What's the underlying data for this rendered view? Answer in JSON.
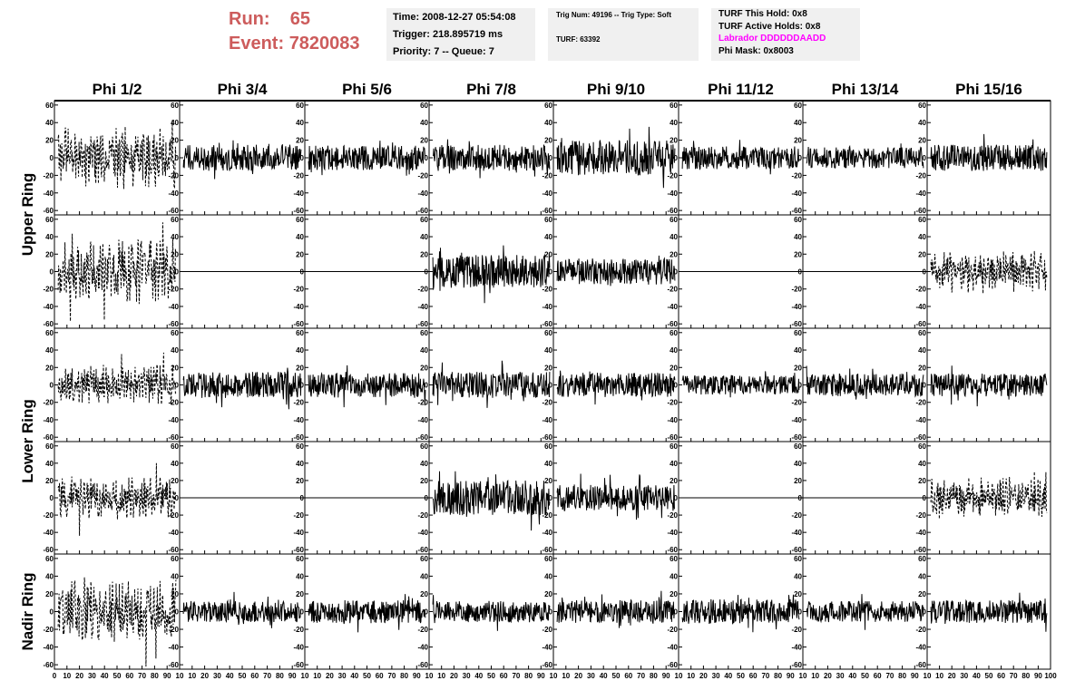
{
  "header": {
    "run_label": "Run:",
    "run_value": "65",
    "event_label": "Event:",
    "event_value": "7820083",
    "time_line": "Time: 2008-12-27 05:54:08",
    "trigger_line": "Trigger: 218.895719 ms",
    "priority_line": "Priority: 7 -- Queue: 7",
    "trig_num_line": "Trig Num: 49196 -- Trig Type: Soft",
    "turf_line": "TURF: 63392",
    "turf_hold_line": "TURF This Hold: 0x8",
    "turf_active_line": "TURF Active Holds: 0x8",
    "labrador_line": "Labrador DDDDDDAADD",
    "phi_mask_line": "Phi Mask: 0x8003"
  },
  "colors": {
    "run_text": "#cd5c5c",
    "labrador_text": "#ff00ff",
    "info_box_bg": "#f0f0f0",
    "trace": "#000000"
  },
  "chart_data": {
    "type": "line",
    "layout": "8 columns x 5 rows of waveform panels",
    "columns": [
      "Phi 1/2",
      "Phi 3/4",
      "Phi 5/6",
      "Phi 7/8",
      "Phi 9/10",
      "Phi 11/12",
      "Phi 13/14",
      "Phi 15/16"
    ],
    "ring_labels": [
      {
        "label": "Upper Ring",
        "rows": [
          0,
          1
        ]
      },
      {
        "label": "Lower Ring",
        "rows": [
          2,
          3
        ]
      },
      {
        "label": "Nadir Ring",
        "rows": [
          4
        ]
      }
    ],
    "xlim": [
      0,
      100
    ],
    "ylim": [
      -65,
      65
    ],
    "y_ticks": [
      -60,
      -40,
      -20,
      0,
      20,
      40,
      60
    ],
    "x_tick_labels_first": [
      "0",
      "10",
      "20",
      "30",
      "40",
      "50",
      "60",
      "70",
      "80",
      "90",
      "10"
    ],
    "x_tick_labels_middle": [
      "10",
      "20",
      "30",
      "40",
      "50",
      "60",
      "70",
      "80",
      "90",
      "10"
    ],
    "x_tick_labels_last": [
      "10",
      "20",
      "30",
      "40",
      "50",
      "60",
      "70",
      "80",
      "90",
      "100"
    ],
    "panels": [
      [
        {
          "style": "dashed",
          "amp": 26,
          "seed": 11
        },
        {
          "style": "solid",
          "amp": 15,
          "seed": 12
        },
        {
          "style": "solid",
          "amp": 14,
          "seed": 13
        },
        {
          "style": "solid",
          "amp": 15,
          "seed": 14
        },
        {
          "style": "solid",
          "amp": 20,
          "seed": 15
        },
        {
          "style": "solid",
          "amp": 13,
          "seed": 16
        },
        {
          "style": "solid",
          "amp": 12,
          "seed": 17
        },
        {
          "style": "solid",
          "amp": 15,
          "seed": 18
        }
      ],
      [
        {
          "style": "dashed",
          "amp": 27,
          "seed": 21
        },
        {
          "style": "flat",
          "amp": 0,
          "seed": 22
        },
        {
          "style": "flat",
          "amp": 0,
          "seed": 23
        },
        {
          "style": "solid",
          "amp": 19,
          "seed": 24
        },
        {
          "style": "solid",
          "amp": 15,
          "seed": 25
        },
        {
          "style": "flat",
          "amp": 0,
          "seed": 26
        },
        {
          "style": "flat",
          "amp": 0,
          "seed": 27
        },
        {
          "style": "dashed",
          "amp": 18,
          "seed": 28
        }
      ],
      [
        {
          "style": "dashed",
          "amp": 17,
          "seed": 31
        },
        {
          "style": "solid",
          "amp": 15,
          "seed": 32
        },
        {
          "style": "solid",
          "amp": 14,
          "seed": 33
        },
        {
          "style": "solid",
          "amp": 15,
          "seed": 34
        },
        {
          "style": "solid",
          "amp": 14,
          "seed": 35
        },
        {
          "style": "solid",
          "amp": 11,
          "seed": 36
        },
        {
          "style": "solid",
          "amp": 13,
          "seed": 37
        },
        {
          "style": "solid",
          "amp": 13,
          "seed": 38
        }
      ],
      [
        {
          "style": "dashed",
          "amp": 18,
          "seed": 41
        },
        {
          "style": "flat",
          "amp": 0,
          "seed": 42
        },
        {
          "style": "flat",
          "amp": 0,
          "seed": 43
        },
        {
          "style": "solid",
          "amp": 20,
          "seed": 44
        },
        {
          "style": "solid",
          "amp": 15,
          "seed": 45
        },
        {
          "style": "flat",
          "amp": 0,
          "seed": 46
        },
        {
          "style": "flat",
          "amp": 0,
          "seed": 47
        },
        {
          "style": "dashed",
          "amp": 18,
          "seed": 48
        }
      ],
      [
        {
          "style": "dashed",
          "amp": 26,
          "seed": 51
        },
        {
          "style": "solid",
          "amp": 12,
          "seed": 52
        },
        {
          "style": "solid",
          "amp": 13,
          "seed": 53
        },
        {
          "style": "solid",
          "amp": 12,
          "seed": 54
        },
        {
          "style": "solid",
          "amp": 13,
          "seed": 55
        },
        {
          "style": "solid",
          "amp": 14,
          "seed": 56
        },
        {
          "style": "solid",
          "amp": 12,
          "seed": 57
        },
        {
          "style": "solid",
          "amp": 13,
          "seed": 58
        }
      ]
    ]
  }
}
